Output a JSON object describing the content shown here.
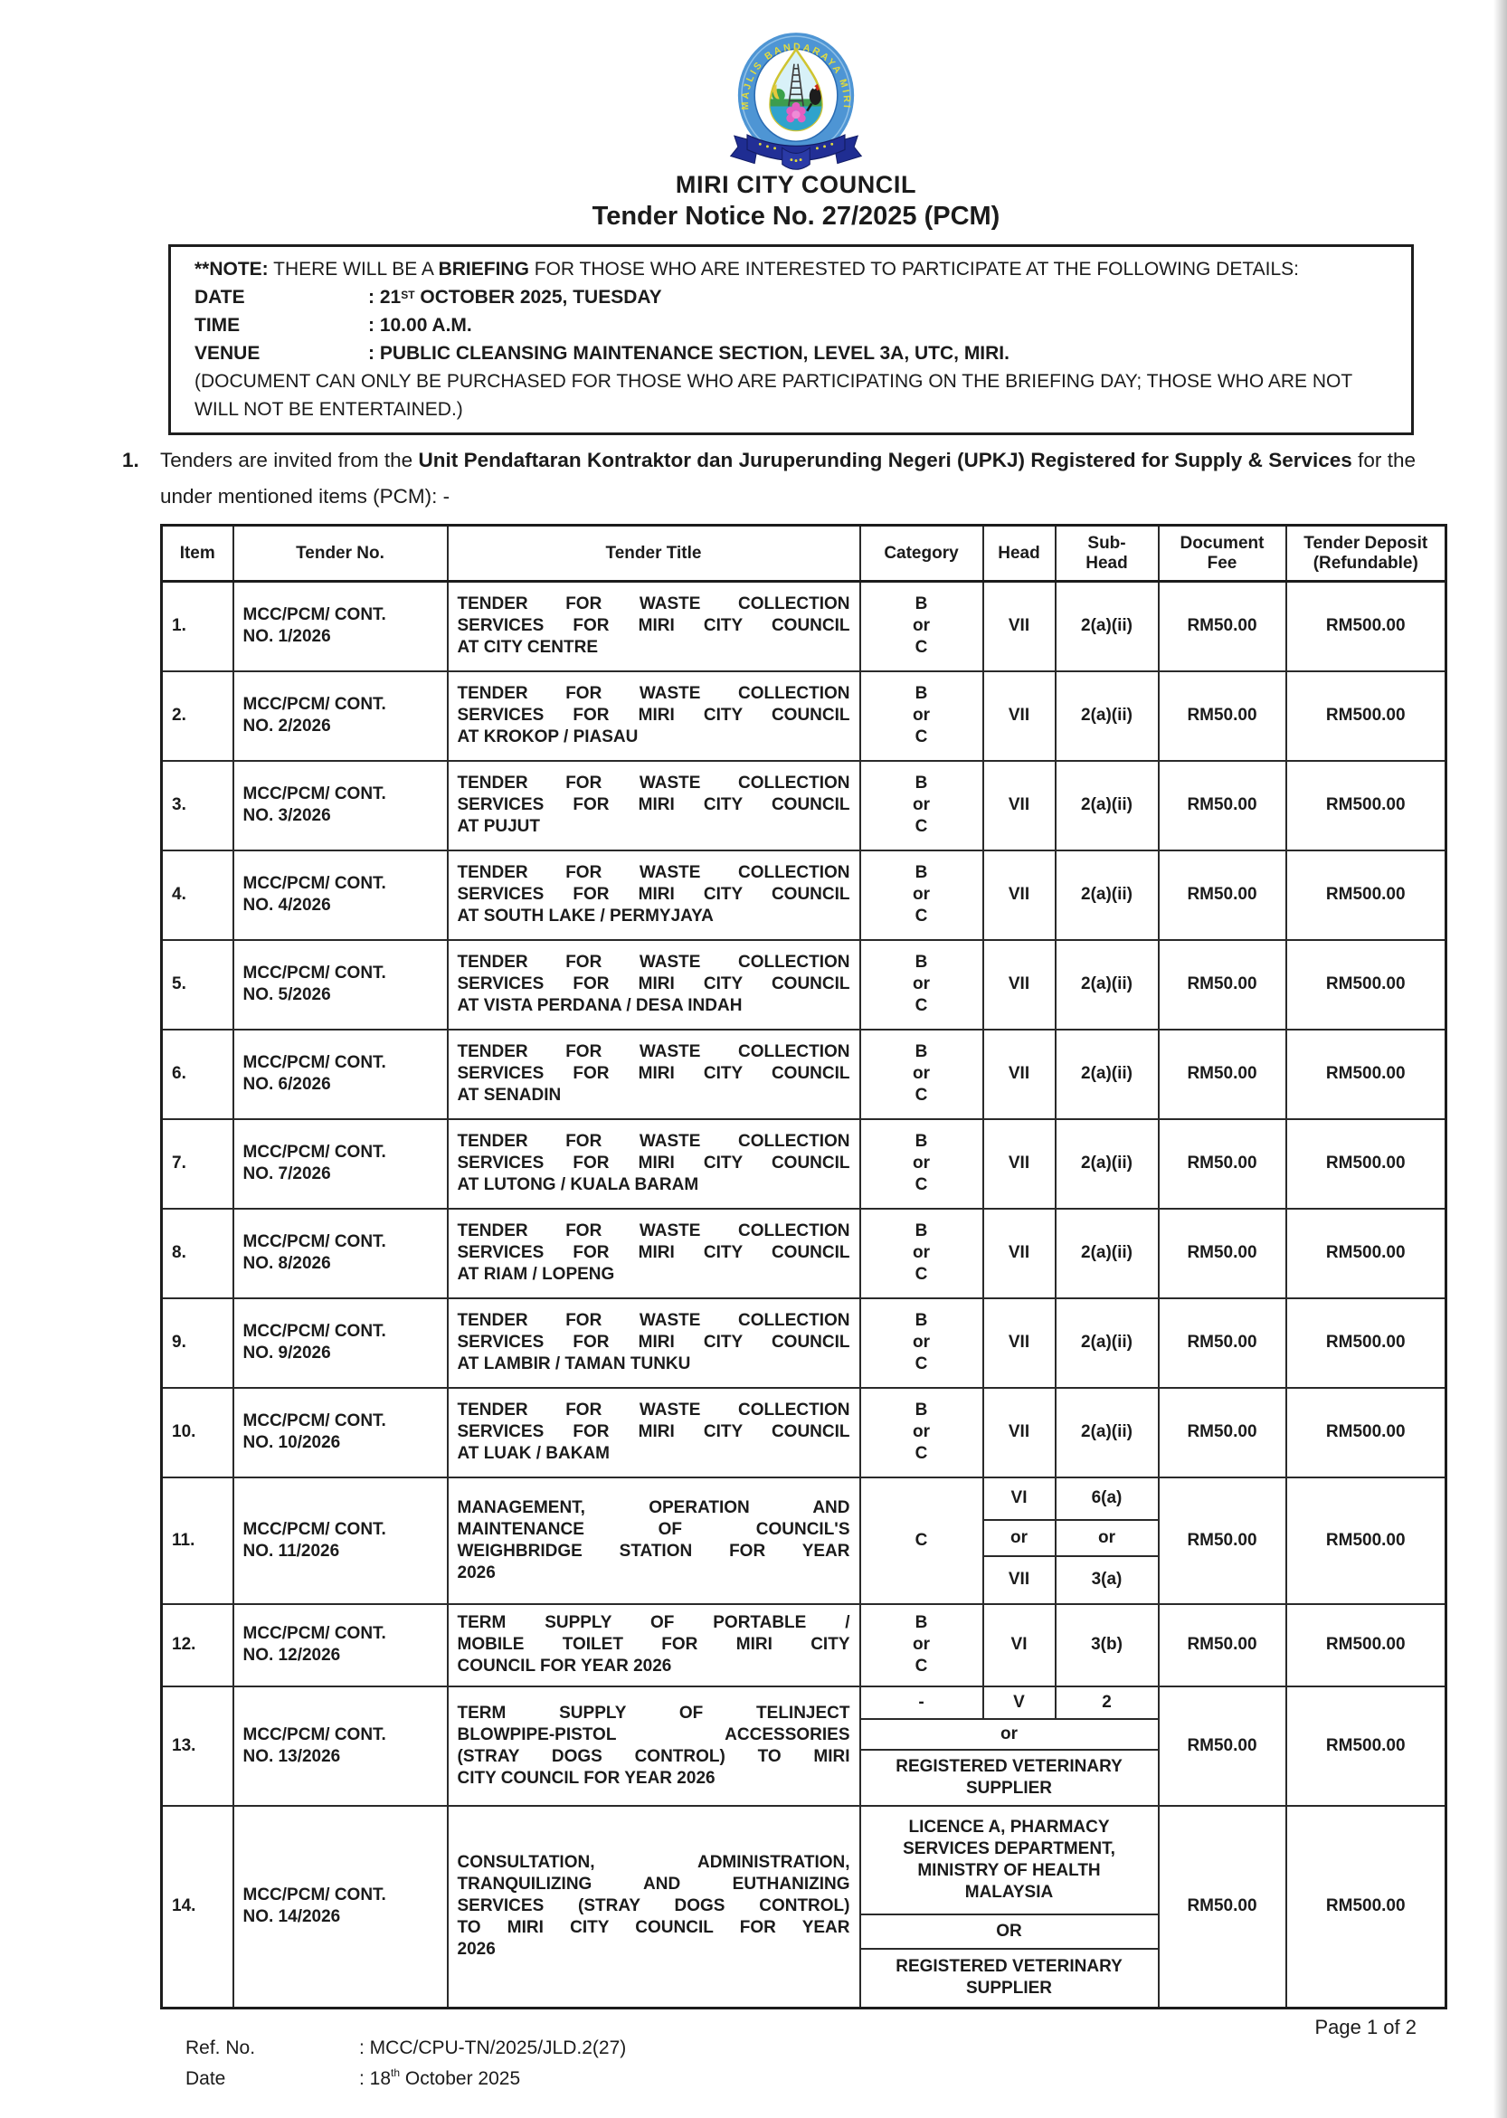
{
  "header": {
    "org_name": "MIRI CITY COUNCIL",
    "notice_title": "Tender Notice No. 27/2025 (PCM)",
    "logo": {
      "ring_text": "MAJLIS BANDARAYA MIRI"
    }
  },
  "note_box": {
    "intro_prefix": "**NOTE:",
    "intro_mid": " THERE WILL BE A ",
    "intro_bold": "BRIEFING",
    "intro_suffix": " FOR THOSE WHO ARE INTERESTED TO PARTICIPATE AT THE FOLLOWING DETAILS:",
    "rows": [
      {
        "label": "DATE",
        "value_pre": ": 21",
        "value_sup": "ST",
        "value_post": " OCTOBER 2025, TUESDAY"
      },
      {
        "label": "TIME",
        "value_pre": ": 10.00 A.M.",
        "value_sup": "",
        "value_post": ""
      },
      {
        "label": "VENUE",
        "value_pre": ": PUBLIC CLEANSING MAINTENANCE SECTION, LEVEL 3A, UTC, MIRI.",
        "value_sup": "",
        "value_post": ""
      }
    ],
    "footnote": "(DOCUMENT CAN ONLY BE PURCHASED FOR THOSE WHO ARE PARTICIPATING ON THE BRIEFING DAY; THOSE WHO ARE NOT WILL NOT BE ENTERTAINED.)"
  },
  "intro": {
    "number": "1.",
    "text_prefix": "Tenders are invited from the ",
    "text_bold": "Unit Pendaftaran Kontraktor dan Juruperunding Negeri (UPKJ) Registered for Supply & Services",
    "text_suffix": " for the under mentioned items (PCM): -"
  },
  "table": {
    "columns": [
      "Item",
      "Tender No.",
      "Tender Title",
      "Category",
      "Head",
      "Sub-\nHead",
      "Document\nFee",
      "Tender Deposit\n(Refundable)"
    ],
    "rows": [
      {
        "item": "1.",
        "tender_no": "MCC/PCM/ CONT.\nNO. 1/2026",
        "title_lines": [
          "TENDER FOR WASTE COLLECTION",
          "SERVICES FOR MIRI CITY COUNCIL",
          "AT CITY CENTRE"
        ],
        "mid": {
          "type": "simple",
          "category": "B\nor\nC",
          "head": "VII",
          "subhead": "2(a)(ii)"
        },
        "fee": "RM50.00",
        "deposit": "RM500.00"
      },
      {
        "item": "2.",
        "tender_no": "MCC/PCM/ CONT.\nNO. 2/2026",
        "title_lines": [
          "TENDER FOR WASTE COLLECTION",
          "SERVICES FOR MIRI CITY COUNCIL",
          "AT KROKOP / PIASAU"
        ],
        "mid": {
          "type": "simple",
          "category": "B\nor\nC",
          "head": "VII",
          "subhead": "2(a)(ii)"
        },
        "fee": "RM50.00",
        "deposit": "RM500.00"
      },
      {
        "item": "3.",
        "tender_no": "MCC/PCM/ CONT.\nNO. 3/2026",
        "title_lines": [
          "TENDER FOR WASTE COLLECTION",
          "SERVICES FOR MIRI CITY COUNCIL",
          "AT PUJUT"
        ],
        "mid": {
          "type": "simple",
          "category": "B\nor\nC",
          "head": "VII",
          "subhead": "2(a)(ii)"
        },
        "fee": "RM50.00",
        "deposit": "RM500.00"
      },
      {
        "item": "4.",
        "tender_no": "MCC/PCM/ CONT.\nNO. 4/2026",
        "title_lines": [
          "TENDER FOR WASTE COLLECTION",
          "SERVICES FOR MIRI CITY COUNCIL",
          "AT SOUTH LAKE / PERMYJAYA"
        ],
        "mid": {
          "type": "simple",
          "category": "B\nor\nC",
          "head": "VII",
          "subhead": "2(a)(ii)"
        },
        "fee": "RM50.00",
        "deposit": "RM500.00"
      },
      {
        "item": "5.",
        "tender_no": "MCC/PCM/ CONT.\nNO. 5/2026",
        "title_lines": [
          "TENDER FOR WASTE COLLECTION",
          "SERVICES FOR MIRI CITY COUNCIL",
          "AT VISTA PERDANA / DESA INDAH"
        ],
        "mid": {
          "type": "simple",
          "category": "B\nor\nC",
          "head": "VII",
          "subhead": "2(a)(ii)"
        },
        "fee": "RM50.00",
        "deposit": "RM500.00"
      },
      {
        "item": "6.",
        "tender_no": "MCC/PCM/ CONT.\nNO. 6/2026",
        "title_lines": [
          "TENDER FOR WASTE COLLECTION",
          "SERVICES FOR MIRI CITY COUNCIL",
          "AT SENADIN"
        ],
        "mid": {
          "type": "simple",
          "category": "B\nor\nC",
          "head": "VII",
          "subhead": "2(a)(ii)"
        },
        "fee": "RM50.00",
        "deposit": "RM500.00"
      },
      {
        "item": "7.",
        "tender_no": "MCC/PCM/ CONT.\nNO. 7/2026",
        "title_lines": [
          "TENDER FOR WASTE COLLECTION",
          "SERVICES FOR MIRI CITY COUNCIL",
          "AT LUTONG / KUALA BARAM"
        ],
        "mid": {
          "type": "simple",
          "category": "B\nor\nC",
          "head": "VII",
          "subhead": "2(a)(ii)"
        },
        "fee": "RM50.00",
        "deposit": "RM500.00"
      },
      {
        "item": "8.",
        "tender_no": "MCC/PCM/ CONT.\nNO. 8/2026",
        "title_lines": [
          "TENDER FOR WASTE COLLECTION",
          "SERVICES FOR MIRI CITY COUNCIL",
          "AT RIAM / LOPENG"
        ],
        "mid": {
          "type": "simple",
          "category": "B\nor\nC",
          "head": "VII",
          "subhead": "2(a)(ii)"
        },
        "fee": "RM50.00",
        "deposit": "RM500.00"
      },
      {
        "item": "9.",
        "tender_no": "MCC/PCM/ CONT.\nNO. 9/2026",
        "title_lines": [
          "TENDER FOR WASTE COLLECTION",
          "SERVICES FOR MIRI CITY COUNCIL",
          "AT LAMBIR / TAMAN TUNKU"
        ],
        "mid": {
          "type": "simple",
          "category": "B\nor\nC",
          "head": "VII",
          "subhead": "2(a)(ii)"
        },
        "fee": "RM50.00",
        "deposit": "RM500.00"
      },
      {
        "item": "10.",
        "tender_no": "MCC/PCM/ CONT.\nNO. 10/2026",
        "title_lines": [
          "TENDER FOR WASTE COLLECTION",
          "SERVICES FOR MIRI CITY COUNCIL",
          "AT LUAK / BAKAM"
        ],
        "mid": {
          "type": "simple",
          "category": "B\nor\nC",
          "head": "VII",
          "subhead": "2(a)(ii)"
        },
        "fee": "RM50.00",
        "deposit": "RM500.00"
      },
      {
        "item": "11.",
        "tender_no": "MCC/PCM/ CONT.\nNO. 11/2026",
        "title_lines": [
          "MANAGEMENT, OPERATION AND",
          "MAINTENANCE OF COUNCIL'S",
          "WEIGHBRIDGE STATION FOR YEAR",
          "2026"
        ],
        "mid": {
          "type": "head_split",
          "category": "C",
          "subrows": [
            [
              "VI",
              "6(a)"
            ],
            [
              "or",
              "or"
            ],
            [
              "VII",
              "3(a)"
            ]
          ]
        },
        "fee": "RM50.00",
        "deposit": "RM500.00"
      },
      {
        "item": "12.",
        "tender_no": "MCC/PCM/ CONT.\nNO. 12/2026",
        "title_lines": [
          "TERM SUPPLY OF PORTABLE /",
          "MOBILE TOILET FOR MIRI CITY",
          "COUNCIL FOR YEAR 2026"
        ],
        "mid": {
          "type": "simple",
          "category": "B\nor\nC",
          "head": "VI",
          "subhead": "3(b)"
        },
        "fee": "RM50.00",
        "deposit": "RM500.00"
      },
      {
        "item": "13.",
        "tender_no": "MCC/PCM/ CONT.\nNO. 13/2026",
        "title_lines": [
          "TERM SUPPLY OF TELINJECT",
          "BLOWPIPE-PISTOL ACCESSORIES",
          "(STRAY DOGS CONTROL) TO MIRI",
          "CITY COUNCIL FOR YEAR 2026"
        ],
        "mid": {
          "type": "mid_split",
          "first": [
            "-",
            "V",
            "2"
          ],
          "spans": [
            "or",
            "REGISTERED VETERINARY\nSUPPLIER"
          ]
        },
        "fee": "RM50.00",
        "deposit": "RM500.00"
      },
      {
        "item": "14.",
        "tender_no": "MCC/PCM/ CONT.\nNO. 14/2026",
        "title_lines": [
          "CONSULTATION, ADMINISTRATION,",
          "TRANQUILIZING AND EUTHANIZING",
          "SERVICES (STRAY DOGS CONTROL)",
          "TO MIRI CITY COUNCIL FOR YEAR",
          "2026"
        ],
        "mid": {
          "type": "mid_merged",
          "spans": [
            "LICENCE A, PHARMACY\nSERVICES DEPARTMENT,\nMINISTRY OF HEALTH\nMALAYSIA",
            "OR",
            "REGISTERED VETERINARY\nSUPPLIER"
          ]
        },
        "fee": "RM50.00",
        "deposit": "RM500.00"
      }
    ]
  },
  "footer": {
    "page": "Page 1 of 2",
    "ref_label": "Ref. No.",
    "ref_value": ": MCC/CPU-TN/2025/JLD.2(27)",
    "date_label": "Date",
    "date_pre": ": 18",
    "date_sup": "th",
    "date_post": " October 2025"
  }
}
